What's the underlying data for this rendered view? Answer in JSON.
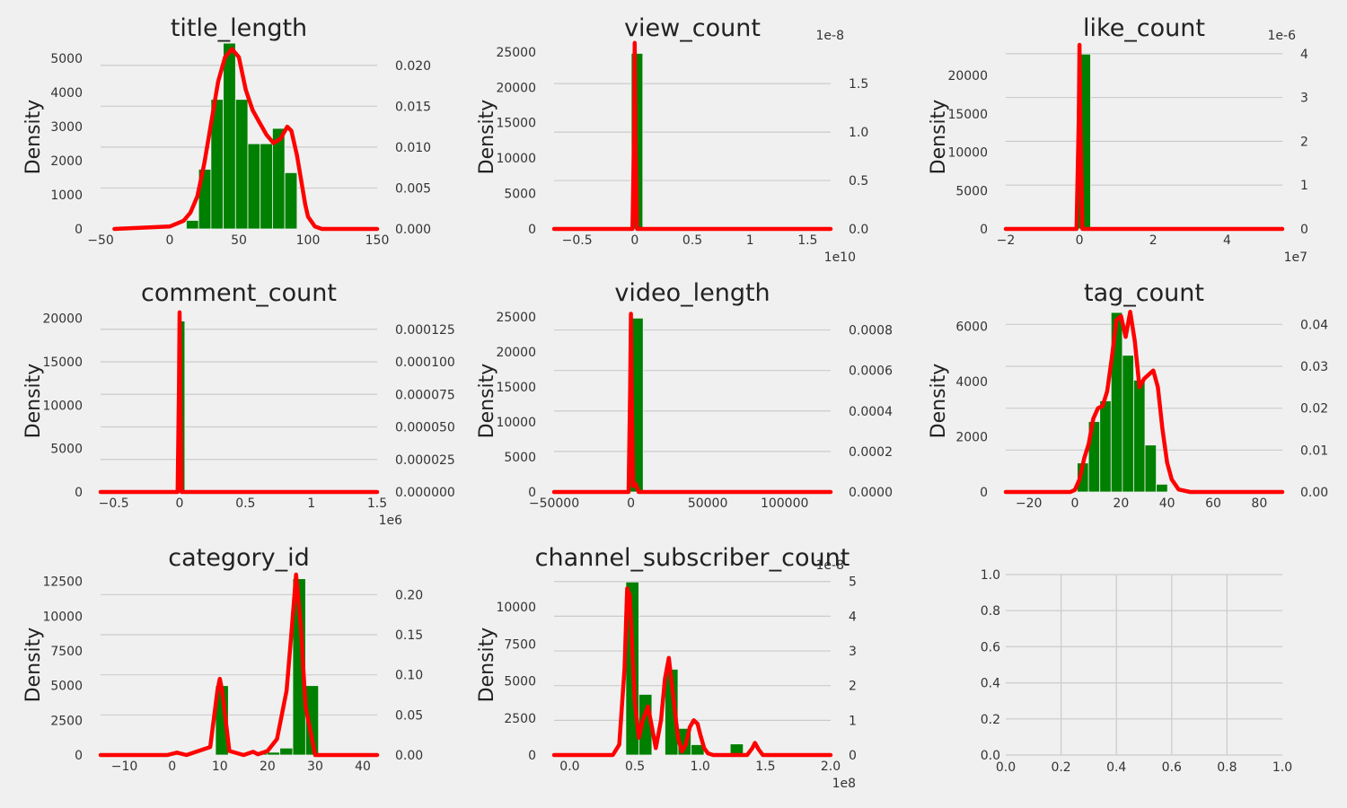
{
  "chart_data": [
    {
      "type": "bar",
      "title": "title_length",
      "ylabel": "Density",
      "xlim": [
        -50,
        150
      ],
      "xticks": [
        -50,
        0,
        50,
        100,
        150
      ],
      "ylim": [
        0,
        5400
      ],
      "yticks": [
        0,
        1000,
        2000,
        3000,
        4000,
        5000
      ],
      "ylim2": [
        0,
        0.0225
      ],
      "yticks2": [
        0,
        0.005,
        0.01,
        0.015,
        0.02
      ],
      "yticklabels2": [
        "0.000",
        "0.005",
        "0.010",
        "0.015",
        "0.020"
      ],
      "bins_start": 12,
      "bin_width": 8.9,
      "values": [
        250,
        1750,
        3800,
        5450,
        3800,
        2500,
        2500,
        2950,
        1650
      ],
      "kde": {
        "x": [
          -40,
          0,
          10,
          15,
          20,
          25,
          30,
          35,
          40,
          45,
          50,
          55,
          60,
          65,
          70,
          75,
          80,
          85,
          88,
          92,
          95,
          98,
          100,
          105,
          110,
          120,
          150
        ],
        "y": [
          0,
          0.0003,
          0.001,
          0.002,
          0.004,
          0.008,
          0.013,
          0.018,
          0.021,
          0.022,
          0.021,
          0.017,
          0.0145,
          0.013,
          0.0115,
          0.0105,
          0.011,
          0.0125,
          0.012,
          0.009,
          0.006,
          0.003,
          0.0015,
          0.0003,
          0,
          0,
          0
        ]
      }
    },
    {
      "type": "bar",
      "title": "view_count",
      "ylabel": "Density",
      "x_offset": "1e10",
      "y2_offset": "1e-8",
      "xlim": [
        -0.7,
        1.7
      ],
      "xticks": [
        -0.5,
        0,
        0.5,
        1,
        1.5
      ],
      "ylim": [
        0,
        26000
      ],
      "yticks": [
        0,
        5000,
        10000,
        15000,
        20000,
        25000
      ],
      "ylim2": [
        0,
        1.9
      ],
      "yticks2": [
        0,
        0.5,
        1,
        1.5
      ],
      "yticklabels2": [
        "0.0",
        "0.5",
        "1.0",
        "1.5"
      ],
      "bins_start": -0.03,
      "bin_width": 0.1,
      "values": [
        24800
      ],
      "kde": {
        "x": [
          -0.7,
          -0.02,
          -0.005,
          0,
          0.005,
          0.02,
          1.7
        ],
        "y": [
          0,
          0,
          1.0,
          1.92,
          1.0,
          0,
          0
        ]
      }
    },
    {
      "type": "bar",
      "title": "like_count",
      "ylabel": "Density",
      "x_offset": "1e7",
      "y2_offset": "1e-6",
      "xlim": [
        -2,
        5.5
      ],
      "xticks": [
        -2,
        0,
        2,
        4
      ],
      "ylim": [
        0,
        24000
      ],
      "yticks": [
        0,
        5000,
        10000,
        15000,
        20000
      ],
      "ylim2": [
        0,
        4.2
      ],
      "yticks2": [
        0,
        1,
        2,
        3,
        4
      ],
      "yticklabels2": [
        "0",
        "1",
        "2",
        "3",
        "4"
      ],
      "bins_start": -0.05,
      "bin_width": 0.35,
      "values": [
        22800
      ],
      "kde": {
        "x": [
          -2,
          -0.08,
          -0.02,
          0,
          0.02,
          0.08,
          5.5
        ],
        "y": [
          0,
          0,
          2.5,
          4.2,
          2.5,
          0,
          0
        ]
      }
    },
    {
      "type": "bar",
      "title": "comment_count",
      "ylabel": "Density",
      "x_offset": "1e6",
      "xlim": [
        -0.6,
        1.5
      ],
      "xticks": [
        -0.5,
        0,
        0.5,
        1,
        1.5
      ],
      "ylim": [
        0,
        21000
      ],
      "yticks": [
        0,
        5000,
        10000,
        15000,
        20000
      ],
      "ylim2": [
        0,
        0.00014
      ],
      "yticks2": [
        0,
        2.5e-05,
        5e-05,
        7.5e-05,
        0.0001,
        0.000125
      ],
      "yticklabels2": [
        "0.000000",
        "0.000025",
        "0.000050",
        "0.000075",
        "0.000100",
        "0.000125"
      ],
      "bins_start": -0.01,
      "bin_width": 0.05,
      "values": [
        19700
      ],
      "kde": {
        "x": [
          -0.6,
          -0.015,
          -0.005,
          0,
          0.005,
          0.015,
          1.5
        ],
        "y": [
          0,
          0,
          8e-05,
          0.000138,
          8e-05,
          0,
          0
        ]
      }
    },
    {
      "type": "bar",
      "title": "video_length",
      "ylabel": "Density",
      "xlim": [
        -50000,
        130000
      ],
      "xticks": [
        -50000,
        0,
        50000,
        100000
      ],
      "ylim": [
        0,
        26000
      ],
      "yticks": [
        0,
        5000,
        10000,
        15000,
        20000,
        25000
      ],
      "ylim2": [
        0,
        0.0009
      ],
      "yticks2": [
        0,
        0.0002,
        0.0004,
        0.0006,
        0.0008
      ],
      "yticklabels2": [
        "0.0000",
        "0.0002",
        "0.0004",
        "0.0006",
        "0.0008"
      ],
      "bins_start": -500,
      "bin_width": 8500,
      "values": [
        24800
      ],
      "kde": {
        "x": [
          -50000,
          -1500,
          -500,
          0,
          500,
          1500,
          3000,
          5000,
          130000
        ],
        "y": [
          0,
          0,
          0.0005,
          0.00088,
          0.0005,
          3e-05,
          4e-05,
          0,
          0
        ]
      }
    },
    {
      "type": "bar",
      "title": "tag_count",
      "ylabel": "Density",
      "xlim": [
        -30,
        90
      ],
      "xticks": [
        -20,
        0,
        20,
        40,
        60,
        80
      ],
      "ylim": [
        0,
        6600
      ],
      "yticks": [
        0,
        2000,
        4000,
        6000
      ],
      "ylim2": [
        0,
        0.0435
      ],
      "yticks2": [
        0,
        0.01,
        0.02,
        0.03,
        0.04
      ],
      "yticklabels2": [
        "0.00",
        "0.01",
        "0.02",
        "0.03",
        "0.04"
      ],
      "bins_start": 1,
      "bin_width": 4.9,
      "values": [
        1050,
        2550,
        3300,
        6500,
        4950,
        4050,
        1700,
        280
      ],
      "kde": {
        "x": [
          -30,
          -2,
          0,
          2,
          4,
          6,
          8,
          10,
          12,
          14,
          16,
          18,
          20,
          22,
          24,
          26,
          28,
          30,
          32,
          34,
          36,
          38,
          40,
          42,
          45,
          50,
          55,
          90
        ],
        "y": [
          0,
          0,
          0.0005,
          0.003,
          0.008,
          0.0115,
          0.0175,
          0.02,
          0.0205,
          0.024,
          0.032,
          0.041,
          0.042,
          0.037,
          0.043,
          0.036,
          0.025,
          0.027,
          0.028,
          0.029,
          0.025,
          0.015,
          0.007,
          0.003,
          0.0006,
          0,
          0,
          0
        ]
      }
    },
    {
      "type": "bar",
      "title": "category_id",
      "ylabel": "Density",
      "xlim": [
        -15,
        43
      ],
      "xticks": [
        -10,
        0,
        10,
        20,
        30,
        40
      ],
      "ylim": [
        0,
        13000
      ],
      "yticks": [
        0,
        2500,
        5000,
        7500,
        10000,
        12500
      ],
      "ylim2": [
        0,
        0.225
      ],
      "yticks2": [
        0,
        0.05,
        0.1,
        0.15,
        0.2
      ],
      "yticklabels2": [
        "0.00",
        "0.05",
        "0.10",
        "0.15",
        "0.20"
      ],
      "bins_start": 1,
      "bin_width": 2.7,
      "values": [
        120,
        0,
        0,
        5000,
        0,
        0,
        200,
        200,
        500,
        12700,
        5000
      ],
      "kde": {
        "x": [
          -15,
          -1,
          1,
          3,
          8,
          9.5,
          10,
          10.5,
          12,
          15,
          17,
          18,
          20,
          22,
          23,
          24,
          25,
          26,
          27,
          28,
          30,
          43
        ],
        "y": [
          0,
          0,
          0.003,
          0,
          0.01,
          0.08,
          0.095,
          0.08,
          0.005,
          0,
          0.004,
          0.001,
          0.005,
          0.02,
          0.05,
          0.08,
          0.15,
          0.225,
          0.16,
          0.06,
          0,
          0
        ]
      }
    },
    {
      "type": "bar",
      "title": "channel_subscriber_count",
      "ylabel": "Density",
      "x_offset": "1e8",
      "y2_offset": "1e-8",
      "xlim": [
        -0.12,
        2.0
      ],
      "xticks": [
        0,
        0.5,
        1,
        1.5,
        2
      ],
      "yticklabels2_x": [
        "0.0",
        "0.5",
        "1.0",
        "1.5",
        "2.0"
      ],
      "ylim": [
        0,
        12200
      ],
      "yticks": [
        0,
        2500,
        5000,
        7500,
        10000
      ],
      "ylim2": [
        0,
        5.2
      ],
      "yticks2": [
        0,
        1,
        2,
        3,
        4,
        5
      ],
      "yticklabels2": [
        "0",
        "1",
        "2",
        "3",
        "4",
        "5"
      ],
      "bins_start": 0.43,
      "bin_width": 0.1,
      "values": [
        11700,
        4100,
        0,
        5800,
        1800,
        700,
        0,
        0,
        750
      ],
      "kde": {
        "x": [
          -0.12,
          0.33,
          0.38,
          0.42,
          0.44,
          0.46,
          0.48,
          0.5,
          0.53,
          0.56,
          0.6,
          0.63,
          0.66,
          0.7,
          0.73,
          0.76,
          0.79,
          0.83,
          0.86,
          0.89,
          0.92,
          0.95,
          0.98,
          1.0,
          1.03,
          1.06,
          1.1,
          1.2,
          1.3,
          1.36,
          1.4,
          1.42,
          1.45,
          1.48,
          1.55,
          2.0
        ],
        "y": [
          0,
          0,
          0.3,
          2.5,
          4.8,
          4.6,
          3.0,
          1.5,
          0.5,
          1.0,
          1.4,
          0.8,
          0.2,
          1.0,
          2.2,
          2.8,
          1.8,
          0.5,
          0.1,
          0.3,
          0.8,
          1.0,
          0.9,
          0.6,
          0.2,
          0.05,
          0,
          0,
          0,
          0,
          0.2,
          0.35,
          0.15,
          0,
          0,
          0
        ]
      }
    },
    {
      "type": "table",
      "title": "",
      "xlim": [
        0,
        1
      ],
      "ylim": [
        0,
        1
      ],
      "xticks": [
        0,
        0.2,
        0.4,
        0.6,
        0.8,
        1
      ],
      "yticks": [
        0,
        0.2,
        0.4,
        0.6,
        0.8,
        1
      ],
      "xticklabels": [
        "0.0",
        "0.2",
        "0.4",
        "0.6",
        "0.8",
        "1.0"
      ],
      "yticklabels": [
        "0.0",
        "0.2",
        "0.4",
        "0.6",
        "0.8",
        "1.0"
      ]
    }
  ],
  "colors": {
    "bar": "#008000",
    "kde": "#ff0000",
    "background": "#f0f0f0",
    "grid": "#cbcbcb"
  }
}
